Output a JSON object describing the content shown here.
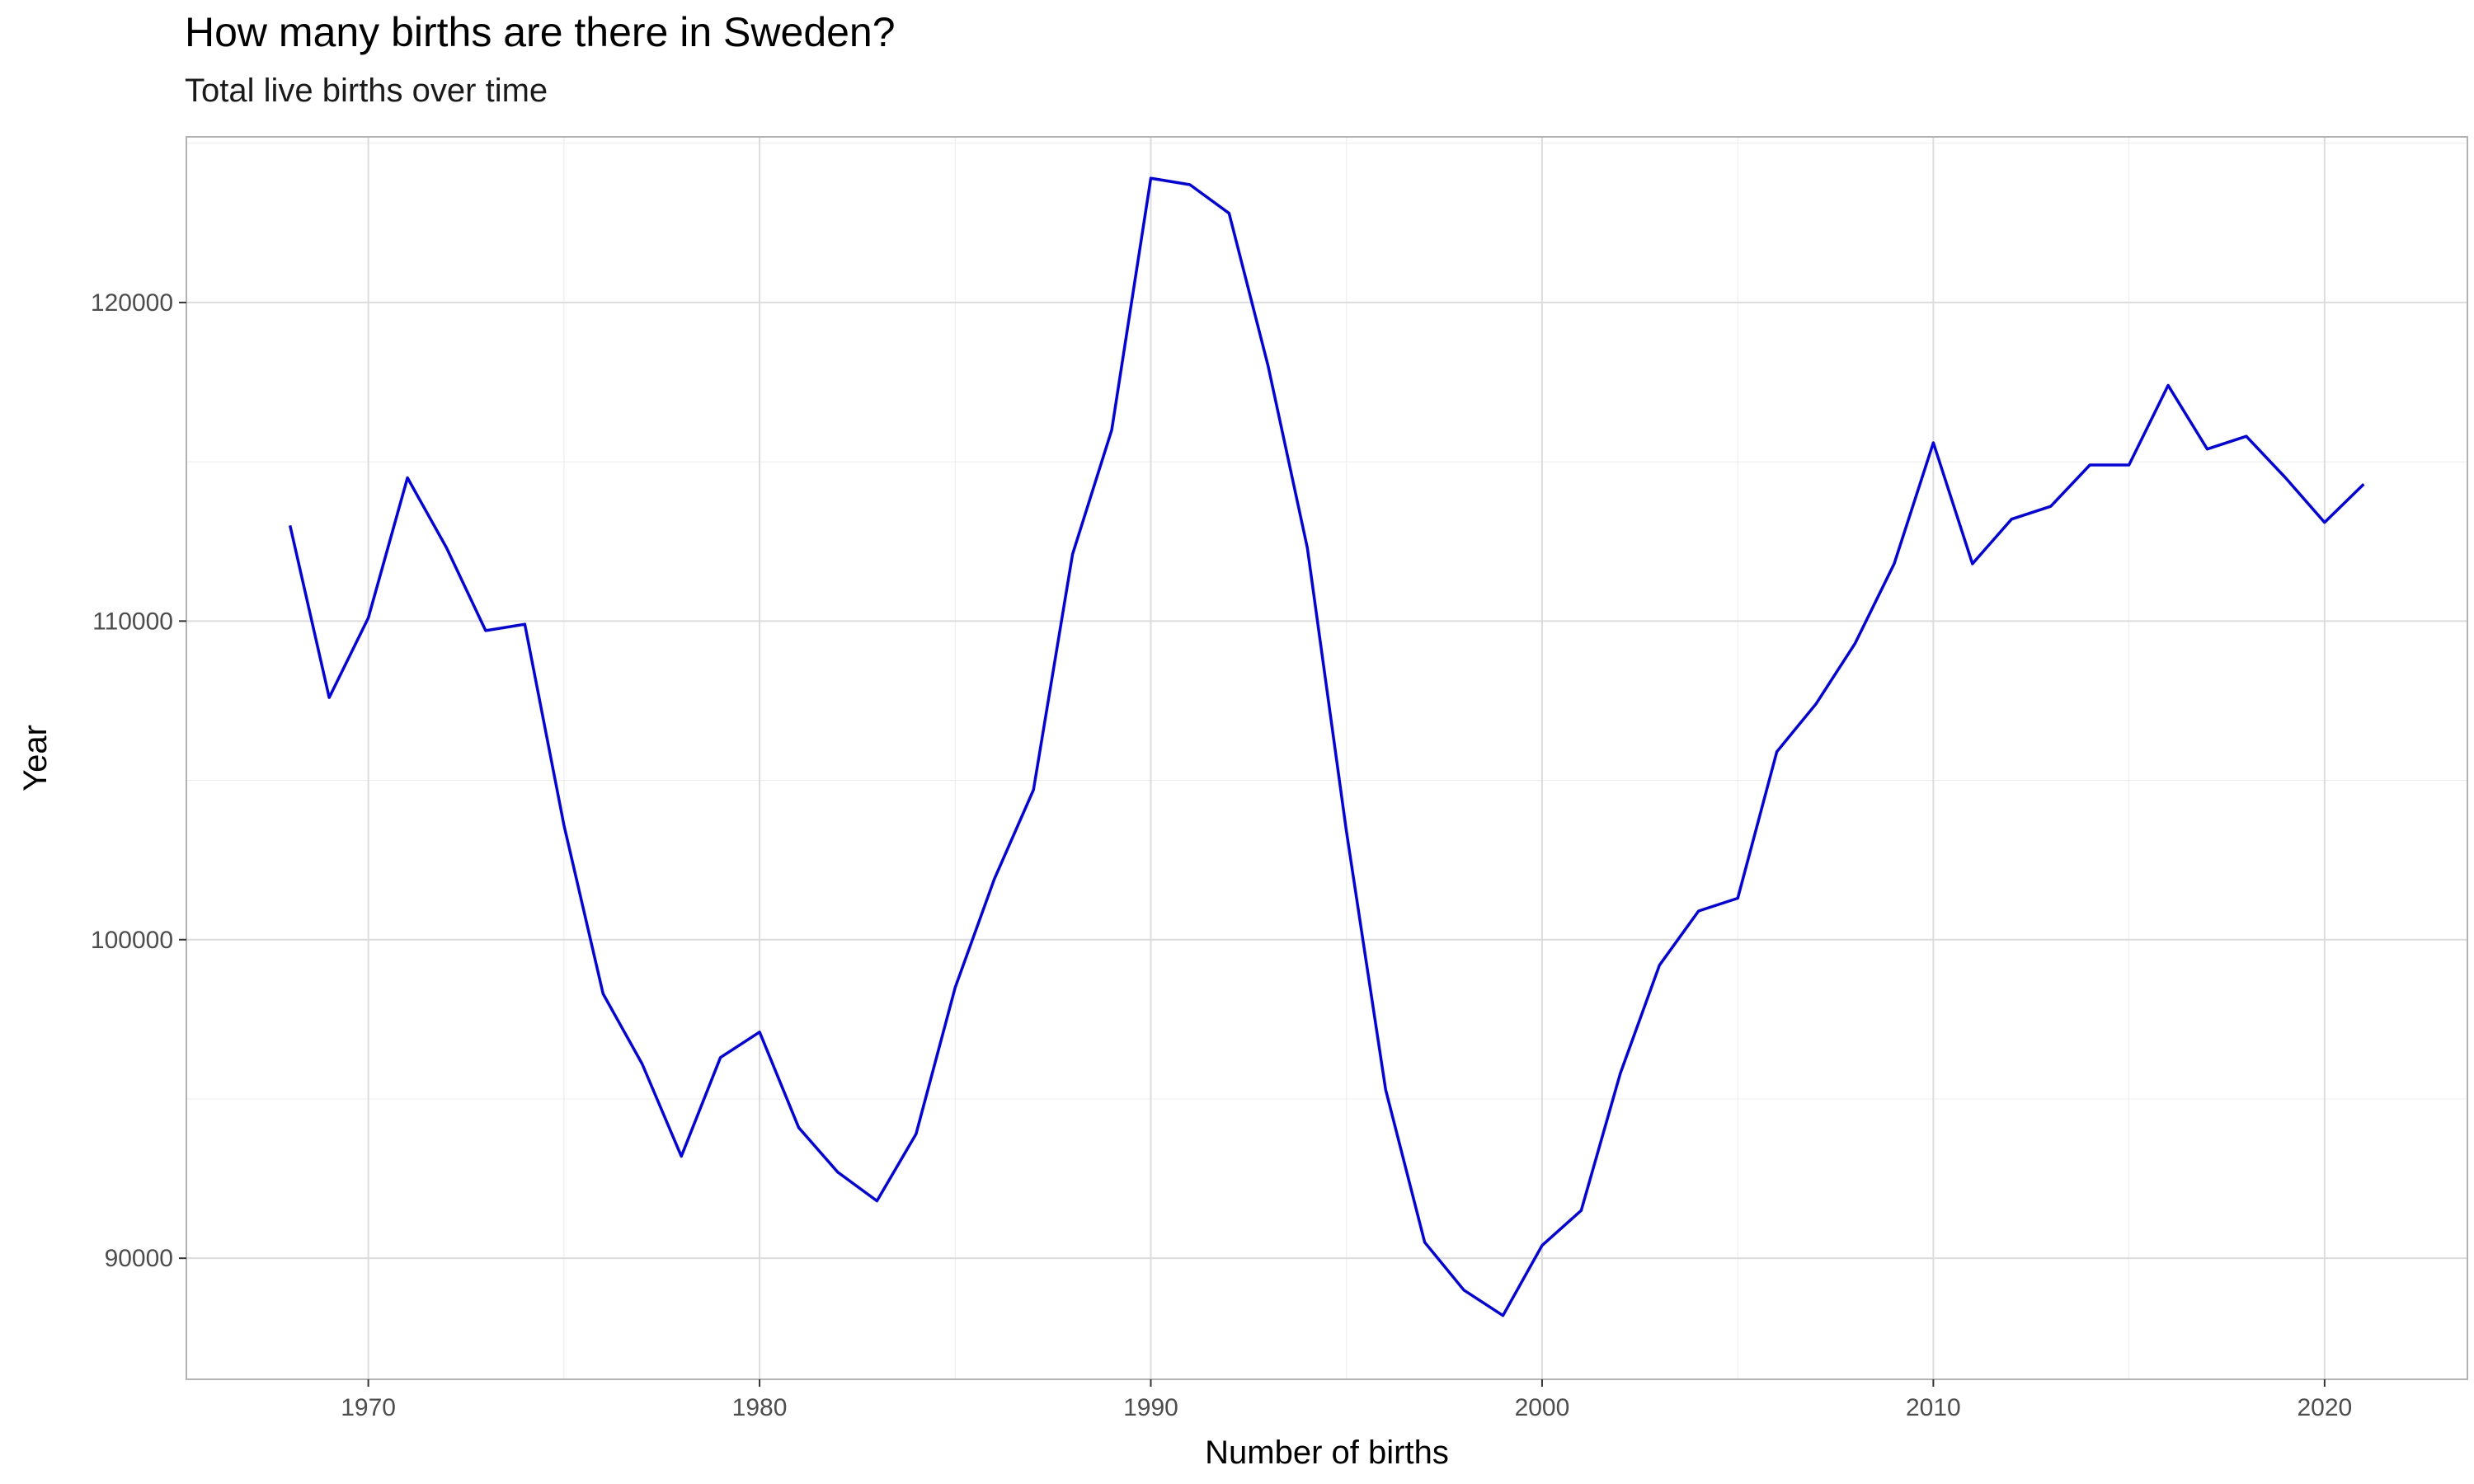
{
  "chart_data": {
    "type": "line",
    "title": "How many births are there in Sweden?",
    "subtitle": "Total live births over time",
    "xlabel": "Number of births",
    "ylabel": "Year",
    "xlim": [
      1965.35,
      2023.65
    ],
    "ylim": [
      86200,
      125200
    ],
    "x_ticks": [
      1970,
      1980,
      1990,
      2000,
      2010,
      2020
    ],
    "y_ticks": [
      90000,
      100000,
      110000,
      120000
    ],
    "grid": true,
    "legend": "none",
    "colors": {
      "line": "#0000ee",
      "panel_border": "#b3b3b3",
      "grid_major": "#dcdcdc",
      "grid_minor": "#ececec"
    },
    "series": [
      {
        "x": [
          1968,
          1969,
          1970,
          1971,
          1972,
          1973,
          1974,
          1975,
          1976,
          1977,
          1978,
          1979,
          1980,
          1981,
          1982,
          1983,
          1984,
          1985,
          1986,
          1987,
          1988,
          1989,
          1990,
          1991,
          1992,
          1993,
          1994,
          1995,
          1996,
          1997,
          1998,
          1999,
          2000,
          2001,
          2002,
          2003,
          2004,
          2005,
          2006,
          2007,
          2008,
          2009,
          2010,
          2011,
          2012,
          2013,
          2014,
          2015,
          2016,
          2017,
          2018,
          2019,
          2020,
          2021
        ],
        "values": [
          113000,
          107600,
          110100,
          114500,
          112300,
          109700,
          109900,
          103600,
          98300,
          96100,
          93200,
          96300,
          97100,
          94100,
          92700,
          91800,
          93900,
          98500,
          101900,
          104700,
          112100,
          116000,
          123900,
          123700,
          122800,
          118000,
          112300,
          103400,
          95300,
          90500,
          89000,
          88200,
          90400,
          91500,
          95800,
          99200,
          100900,
          101300,
          105900,
          107400,
          109300,
          111800,
          115600,
          111800,
          113200,
          113600,
          114900,
          114900,
          117400,
          115400,
          115800,
          114500,
          113100,
          114300
        ]
      }
    ]
  }
}
